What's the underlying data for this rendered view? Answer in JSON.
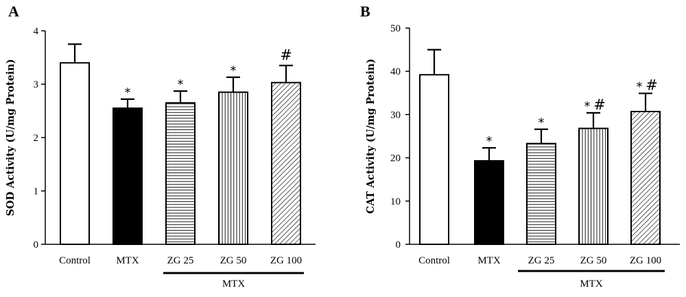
{
  "chart_data": [
    {
      "panel": "A",
      "type": "bar",
      "ylabel": "SOD Activity (U/mg Protein)",
      "ylim": [
        0,
        4
      ],
      "yticks": [
        0,
        1,
        2,
        3,
        4
      ],
      "categories": [
        "Control",
        "MTX",
        "ZG 25",
        "ZG 50",
        "ZG 100"
      ],
      "values": [
        3.4,
        2.55,
        2.65,
        2.85,
        3.03
      ],
      "errors": [
        0.35,
        0.17,
        0.22,
        0.28,
        0.32
      ],
      "fills": [
        "white",
        "black",
        "horizontal",
        "vertical",
        "diagonal"
      ],
      "annotations": [
        "",
        "*",
        "*",
        "*",
        "#"
      ],
      "group_label": "MTX",
      "group_span": [
        2,
        4
      ]
    },
    {
      "panel": "B",
      "type": "bar",
      "ylabel": "CAT Activity (U/mg Protein)",
      "ylim": [
        0,
        50
      ],
      "yticks": [
        0,
        10,
        20,
        30,
        40,
        50
      ],
      "categories": [
        "Control",
        "MTX",
        "ZG 25",
        "ZG 50",
        "ZG 100"
      ],
      "values": [
        39.2,
        19.3,
        23.3,
        26.8,
        30.7
      ],
      "errors": [
        5.8,
        3.0,
        3.3,
        3.6,
        4.2
      ],
      "fills": [
        "white",
        "black",
        "horizontal",
        "vertical",
        "diagonal"
      ],
      "annotations": [
        "",
        "*",
        "*",
        "* #",
        "* #"
      ],
      "group_label": "MTX",
      "group_span": [
        2,
        4
      ]
    }
  ]
}
